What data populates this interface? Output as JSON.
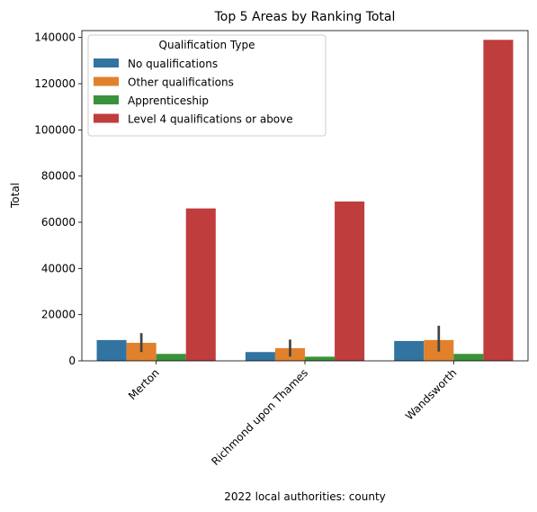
{
  "chart_data": {
    "type": "bar",
    "title": "Top 5 Areas by Ranking Total",
    "xlabel": "2022 local authorities: county",
    "ylabel": "Total",
    "ylim": [
      0,
      143000
    ],
    "yticks": [
      0,
      20000,
      40000,
      60000,
      80000,
      100000,
      120000,
      140000
    ],
    "categories": [
      "Merton",
      "Richmond upon Thames",
      "Wandsworth"
    ],
    "legend": {
      "title": "Qualification Type",
      "placement": "top-left"
    },
    "series": [
      {
        "name": "No qualifications",
        "color": "#3274a1",
        "values": [
          9000,
          3800,
          8600
        ],
        "error_range": [
          null,
          null,
          null
        ]
      },
      {
        "name": "Other qualifications",
        "color": "#e1812c",
        "values": [
          7800,
          5500,
          9000
        ],
        "error_range": [
          [
            3800,
            12000
          ],
          [
            1800,
            9200
          ],
          [
            4000,
            15200
          ]
        ]
      },
      {
        "name": "Apprenticeship",
        "color": "#3a923a",
        "values": [
          3000,
          1800,
          3000
        ],
        "error_range": [
          null,
          null,
          null
        ]
      },
      {
        "name": "Level 4 qualifications or above",
        "color": "#c03d3e",
        "values": [
          66000,
          69000,
          139000
        ],
        "error_range": [
          null,
          null,
          null
        ]
      }
    ],
    "grid": false
  }
}
